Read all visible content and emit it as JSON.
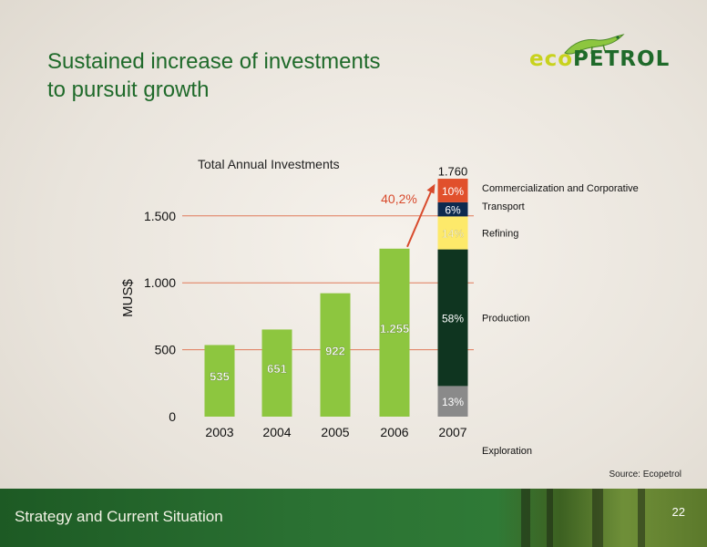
{
  "slide": {
    "title_line1": "Sustained increase of investments",
    "title_line2": "to pursuit growth",
    "source": "Source: Ecopetrol",
    "footer_text": "Strategy and Current  Situation",
    "page_number": "22"
  },
  "logo": {
    "text_a": "eco",
    "text_b": "PETROL",
    "colors": {
      "eco": "#c8d21d",
      "petrol": "#1f6a2a"
    }
  },
  "chart_data": {
    "type": "bar",
    "title": "Total Annual Investments",
    "ylabel": "MUS$",
    "xlabel": "",
    "categories": [
      "2003",
      "2004",
      "2005",
      "2006",
      "2007"
    ],
    "values": [
      535,
      651,
      922,
      1255,
      1760
    ],
    "value_labels": [
      "535",
      "651",
      "922",
      "1.255",
      "1.760"
    ],
    "ylim": [
      0,
      1760
    ],
    "y_ticks": [
      0,
      500,
      1000,
      1500
    ],
    "y_tick_labels": [
      "0",
      "500",
      "1.000",
      "1.500"
    ],
    "grid": true,
    "growth_annotation": "40,2%",
    "bar_color": "#8dc63f",
    "stacked_2007": [
      {
        "name": "Exploration",
        "pct": 13,
        "label": "13%",
        "color": "#8a8a8a"
      },
      {
        "name": "Production",
        "pct": 58,
        "label": "58%",
        "color": "#0f3520"
      },
      {
        "name": "Refining",
        "pct": 14,
        "label": "14%",
        "color": "#fde96a"
      },
      {
        "name": "Transport",
        "pct": 6,
        "label": "6%",
        "color": "#0d2a4f"
      },
      {
        "name": "Commercialization and Corporative",
        "pct": 10,
        "label": "10%",
        "color": "#e1502c"
      }
    ],
    "colors": {
      "grid": "#e07a5a",
      "annotation": "#d84a2c",
      "axis_text": "#111111"
    }
  }
}
